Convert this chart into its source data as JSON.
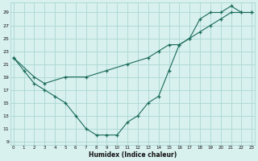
{
  "line1_x": [
    0,
    1,
    2,
    3,
    4,
    5,
    6,
    7,
    8,
    9,
    10,
    11,
    12,
    13,
    14,
    15,
    16,
    17,
    18,
    19,
    20,
    21,
    22,
    23
  ],
  "line1_y": [
    22,
    20,
    18,
    17,
    16,
    15,
    13,
    11,
    10,
    10,
    10,
    12,
    13,
    15,
    16,
    20,
    24,
    25,
    28,
    29,
    29,
    30,
    29,
    29
  ],
  "line2_x": [
    0,
    2,
    3,
    5,
    7,
    9,
    11,
    13,
    14,
    15,
    16,
    17,
    18,
    19,
    20,
    21,
    22,
    23
  ],
  "line2_y": [
    22,
    19,
    18,
    19,
    19,
    20,
    21,
    22,
    23,
    24,
    24,
    25,
    26,
    27,
    28,
    29,
    29,
    29
  ],
  "line_color": "#1a6b5a",
  "bg_color": "#d8f0ee",
  "grid_color": "#aad8d4",
  "xlabel": "Humidex (Indice chaleur)",
  "yticks": [
    9,
    11,
    13,
    15,
    17,
    19,
    21,
    23,
    25,
    27,
    29
  ],
  "xticks": [
    0,
    1,
    2,
    3,
    4,
    5,
    6,
    7,
    8,
    9,
    10,
    11,
    12,
    13,
    14,
    15,
    16,
    17,
    18,
    19,
    20,
    21,
    22,
    23
  ],
  "xlim": [
    -0.3,
    23.3
  ],
  "ylim": [
    8.5,
    30.5
  ]
}
